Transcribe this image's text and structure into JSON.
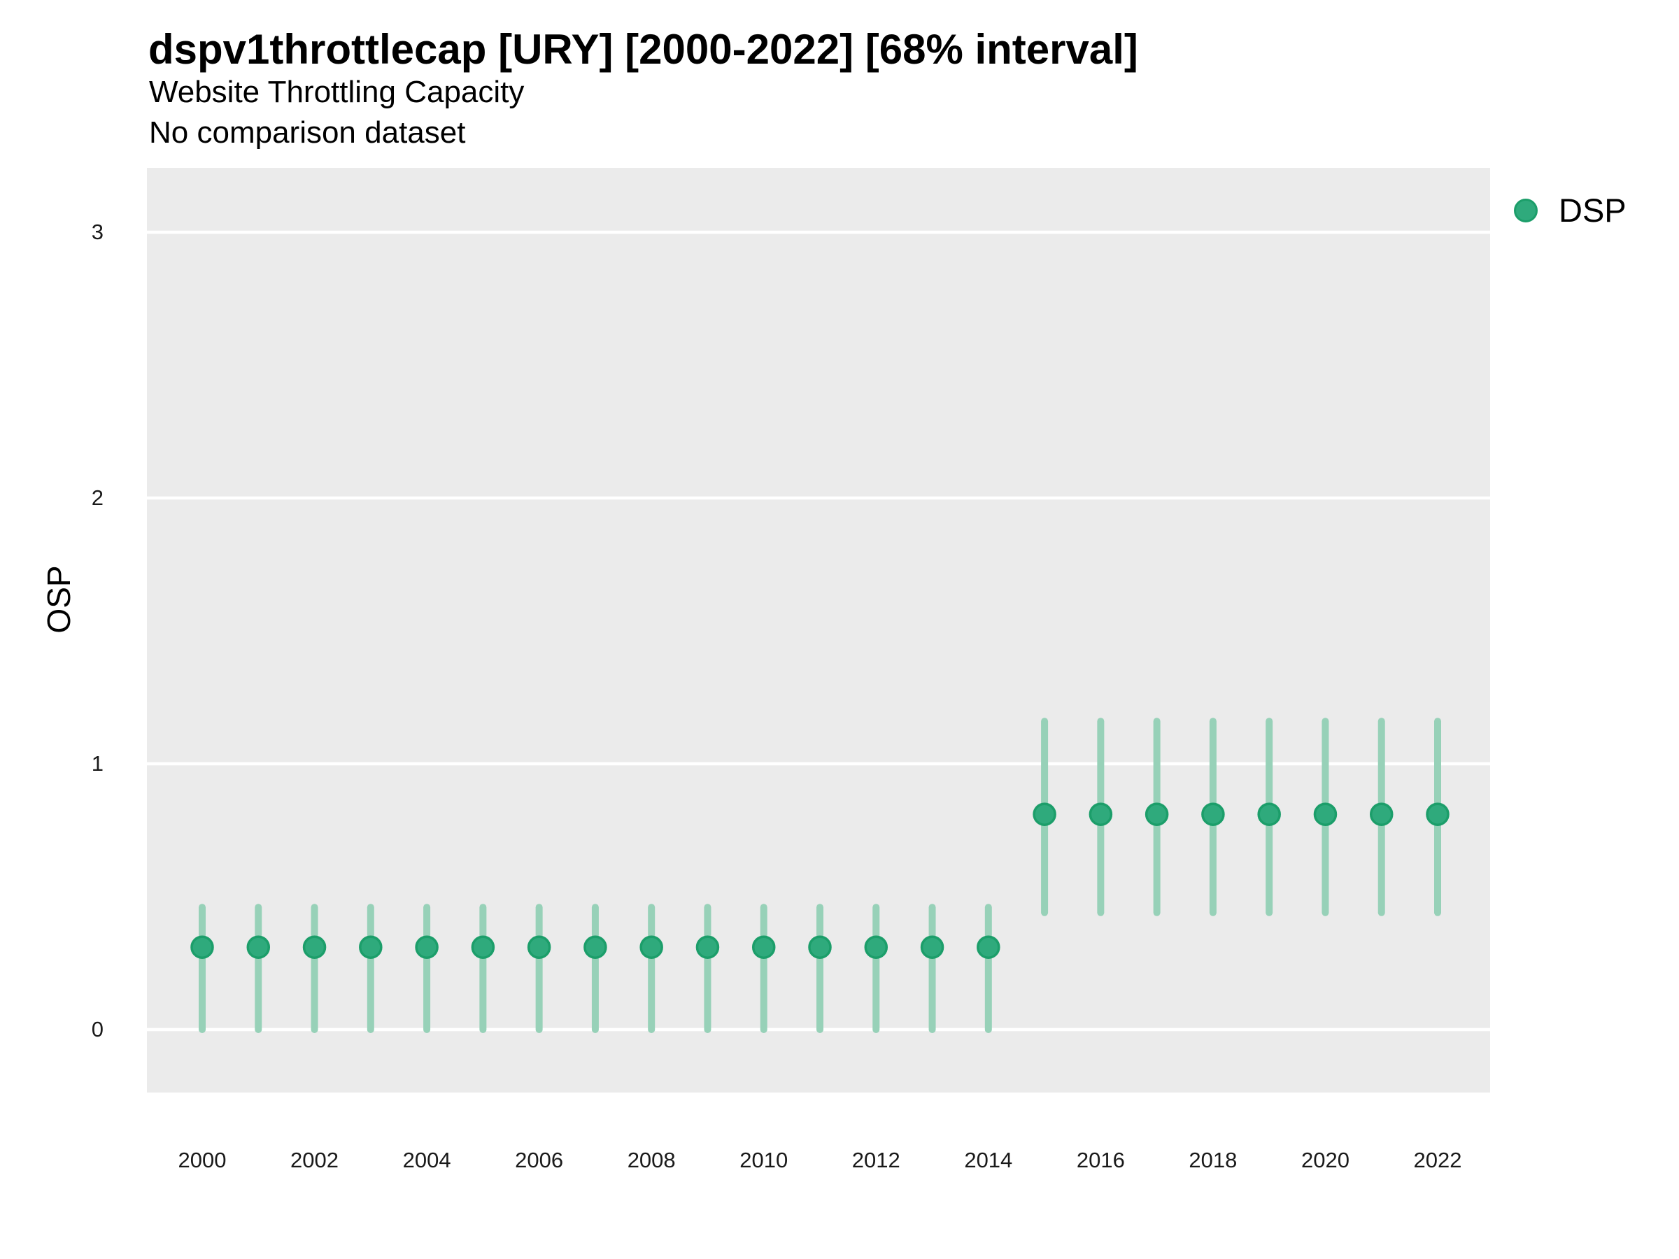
{
  "header": {
    "title": "dspv1throttlecap [URY] [2000-2022] [68% interval]",
    "subtitle": "Website Throttling Capacity",
    "note": "No comparison dataset"
  },
  "legend": {
    "position": "right-top",
    "items": [
      {
        "label": "DSP",
        "marker": "circle",
        "color": "#2FAA7C",
        "stroke": "#1C9E6A"
      }
    ]
  },
  "colors": {
    "panel_background": "#EBEBEB",
    "gridline": "#FFFFFF",
    "marker_fill": "#2FAA7C",
    "marker_stroke": "#1C9E6A",
    "interval_bar": "#97D1B8",
    "text": "#000000"
  },
  "chart_data": {
    "type": "scatter",
    "title": "dspv1throttlecap [URY] [2000-2022] [68% interval]",
    "subtitle": "Website Throttling Capacity",
    "note": "No comparison dataset",
    "xlabel": "",
    "ylabel": "OSP",
    "interval_level": "68%",
    "grid": "horizontal-only",
    "legend_position": "right-top",
    "xlim": [
      1999,
      2023
    ],
    "ylim": [
      -0.25,
      3.25
    ],
    "x_ticks": [
      2000,
      2002,
      2004,
      2006,
      2008,
      2010,
      2012,
      2014,
      2016,
      2018,
      2020,
      2022
    ],
    "y_ticks": [
      0,
      1,
      2,
      3
    ],
    "series": [
      {
        "name": "DSP",
        "marker_color": "#2FAA7C",
        "marker_stroke": "#1C9E6A",
        "interval_color": "#97D1B8",
        "points": [
          {
            "x": 2000,
            "y": 0.31,
            "lo": 0.0,
            "hi": 0.46
          },
          {
            "x": 2001,
            "y": 0.31,
            "lo": 0.0,
            "hi": 0.46
          },
          {
            "x": 2002,
            "y": 0.31,
            "lo": 0.0,
            "hi": 0.46
          },
          {
            "x": 2003,
            "y": 0.31,
            "lo": 0.0,
            "hi": 0.46
          },
          {
            "x": 2004,
            "y": 0.31,
            "lo": 0.0,
            "hi": 0.46
          },
          {
            "x": 2005,
            "y": 0.31,
            "lo": 0.0,
            "hi": 0.46
          },
          {
            "x": 2006,
            "y": 0.31,
            "lo": 0.0,
            "hi": 0.46
          },
          {
            "x": 2007,
            "y": 0.31,
            "lo": 0.0,
            "hi": 0.46
          },
          {
            "x": 2008,
            "y": 0.31,
            "lo": 0.0,
            "hi": 0.46
          },
          {
            "x": 2009,
            "y": 0.31,
            "lo": 0.0,
            "hi": 0.46
          },
          {
            "x": 2010,
            "y": 0.31,
            "lo": 0.0,
            "hi": 0.46
          },
          {
            "x": 2011,
            "y": 0.31,
            "lo": 0.0,
            "hi": 0.46
          },
          {
            "x": 2012,
            "y": 0.31,
            "lo": 0.0,
            "hi": 0.46
          },
          {
            "x": 2013,
            "y": 0.31,
            "lo": 0.0,
            "hi": 0.46
          },
          {
            "x": 2014,
            "y": 0.31,
            "lo": 0.0,
            "hi": 0.46
          },
          {
            "x": 2015,
            "y": 0.81,
            "lo": 0.44,
            "hi": 1.16
          },
          {
            "x": 2016,
            "y": 0.81,
            "lo": 0.44,
            "hi": 1.16
          },
          {
            "x": 2017,
            "y": 0.81,
            "lo": 0.44,
            "hi": 1.16
          },
          {
            "x": 2018,
            "y": 0.81,
            "lo": 0.44,
            "hi": 1.16
          },
          {
            "x": 2019,
            "y": 0.81,
            "lo": 0.44,
            "hi": 1.16
          },
          {
            "x": 2020,
            "y": 0.81,
            "lo": 0.44,
            "hi": 1.16
          },
          {
            "x": 2021,
            "y": 0.81,
            "lo": 0.44,
            "hi": 1.16
          },
          {
            "x": 2022,
            "y": 0.81,
            "lo": 0.44,
            "hi": 1.16
          }
        ]
      }
    ]
  }
}
